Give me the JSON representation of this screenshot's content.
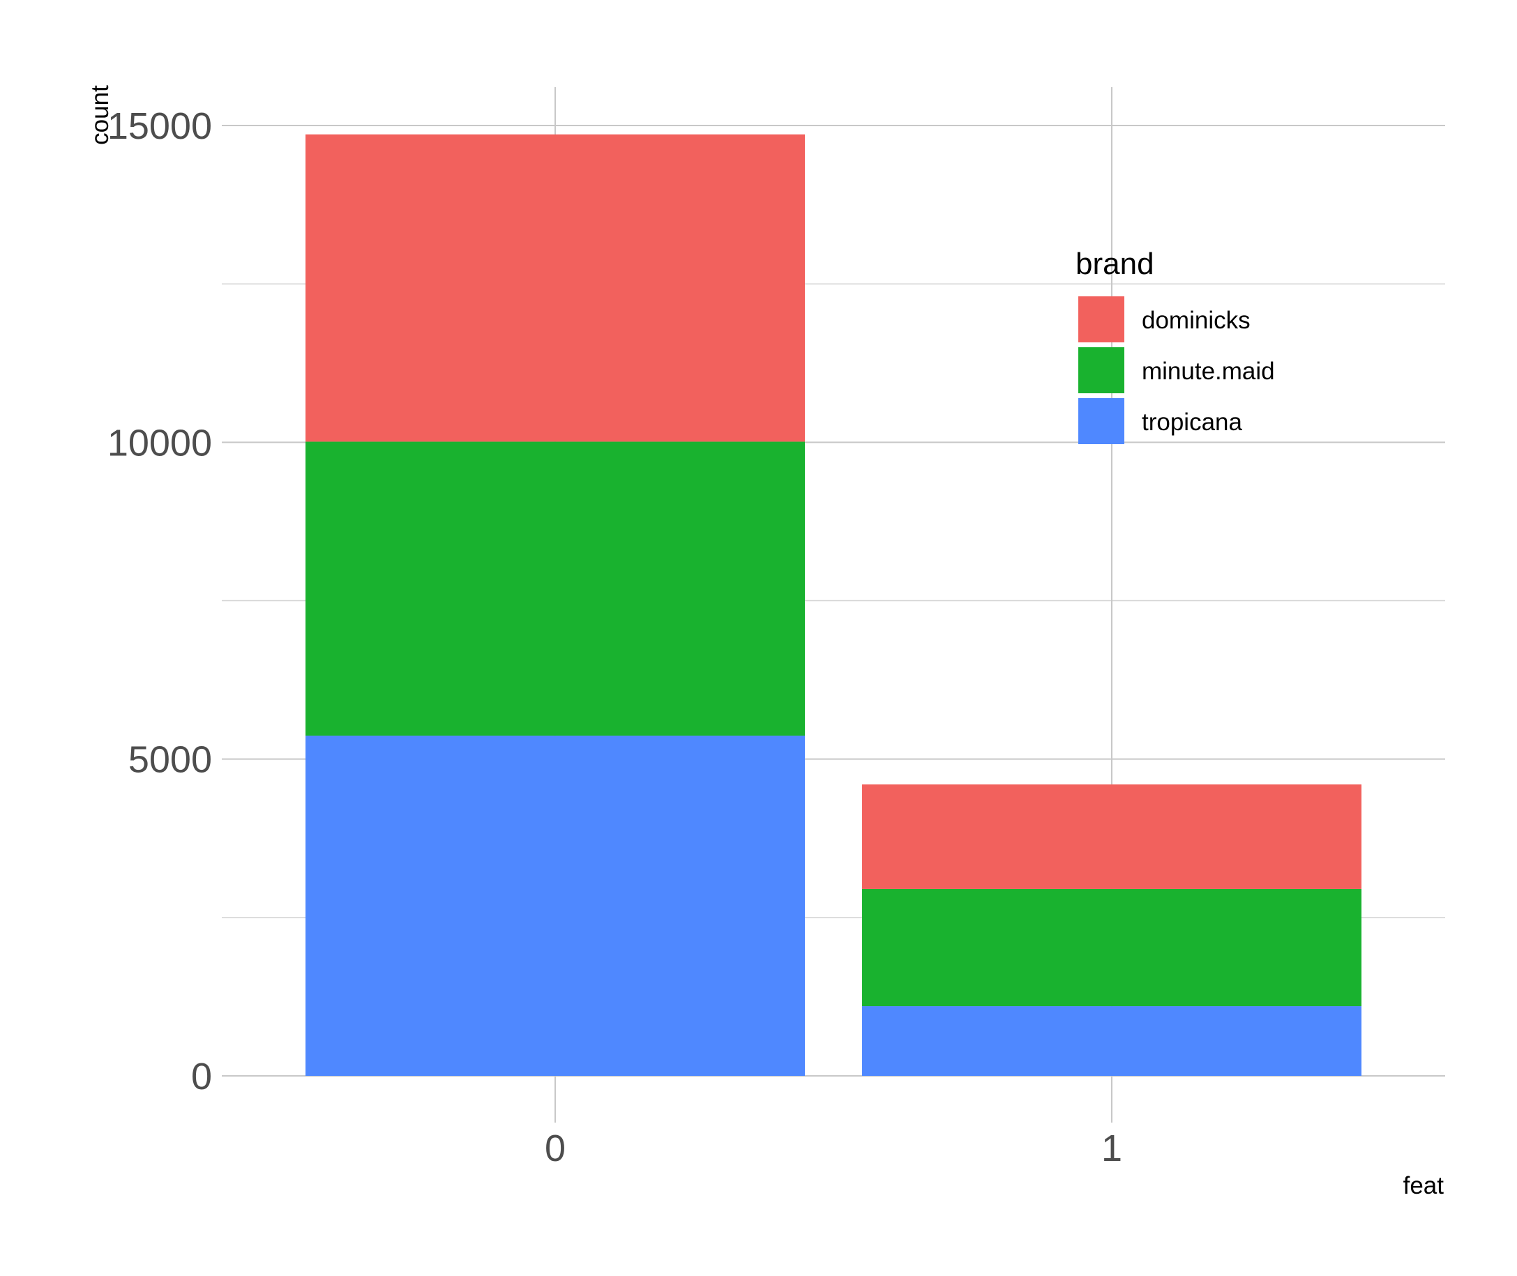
{
  "chart_data": {
    "type": "bar",
    "stacked": true,
    "categories": [
      "0",
      "1"
    ],
    "series": [
      {
        "name": "tropicana",
        "values": [
          5370,
          1100
        ]
      },
      {
        "name": "minute.maid",
        "values": [
          4640,
          1850
        ]
      },
      {
        "name": "dominicks",
        "values": [
          4850,
          1650
        ]
      }
    ],
    "stack_order_top_to_bottom": [
      "dominicks",
      "minute.maid",
      "tropicana"
    ],
    "colors": {
      "dominicks": "#F2615D",
      "minute.maid": "#19B22F",
      "tropicana": "#4F88FF"
    },
    "xlabel": "feat",
    "ylabel": "count",
    "ylim": [
      0,
      15000
    ],
    "yticks": [
      0,
      5000,
      10000,
      15000
    ],
    "ytick_labels": [
      "0",
      "5000",
      "10000",
      "15000"
    ],
    "grid": true,
    "legend": {
      "title": "brand",
      "entries": [
        "dominicks",
        "minute.maid",
        "tropicana"
      ],
      "placement": "top-right"
    }
  }
}
